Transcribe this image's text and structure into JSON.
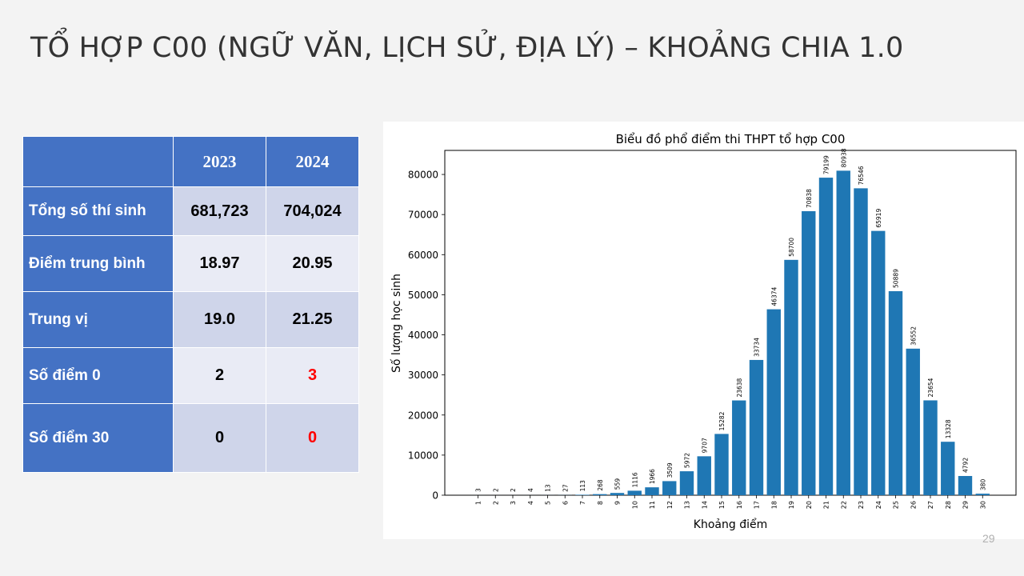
{
  "slide": {
    "title": "TỔ HỢP C00 (NGỮ VĂN, LỊCH SỬ, ĐỊA LÝ) – KHOẢNG CHIA 1.0",
    "page_number": "29"
  },
  "table": {
    "headers": [
      "",
      "2023",
      "2024"
    ],
    "rows": [
      {
        "label": "Tổng số thí sinh",
        "v2023": "681,723",
        "v2024": "704,024"
      },
      {
        "label": "Điểm trung bình",
        "v2023": "18.97",
        "v2024": "20.95"
      },
      {
        "label": "Trung vị",
        "v2023": "19.0",
        "v2024": "21.25"
      },
      {
        "label": "Số điểm 0",
        "v2023": "2",
        "v2024": "3"
      },
      {
        "label": "Số điểm 30",
        "v2023": "0",
        "v2024": "0"
      }
    ],
    "highlight_color": "#ff0000"
  },
  "chart_data": {
    "type": "bar",
    "title": "Biểu đồ phổ điểm thi THPT tổ hợp C00",
    "xlabel": "Khoảng điểm",
    "ylabel": "Số lượng học sinh",
    "categories": [
      "1",
      "2",
      "3",
      "4",
      "5",
      "6",
      "7",
      "8",
      "9",
      "10",
      "11",
      "12",
      "13",
      "14",
      "15",
      "16",
      "17",
      "18",
      "19",
      "20",
      "21",
      "22",
      "23",
      "24",
      "25",
      "26",
      "27",
      "28",
      "29",
      "30"
    ],
    "values": [
      3,
      2,
      2,
      4,
      13,
      27,
      113,
      268,
      559,
      1116,
      1966,
      3509,
      5972,
      9707,
      15282,
      23638,
      33734,
      46374,
      58700,
      70838,
      79199,
      80938,
      76546,
      65919,
      50889,
      36552,
      23654,
      13328,
      4792,
      380
    ],
    "yticks": [
      0,
      10000,
      20000,
      30000,
      40000,
      50000,
      60000,
      70000,
      80000
    ],
    "ylim": [
      0,
      86000
    ],
    "bar_color": "#1f77b4",
    "grid": false,
    "legend": "none"
  }
}
